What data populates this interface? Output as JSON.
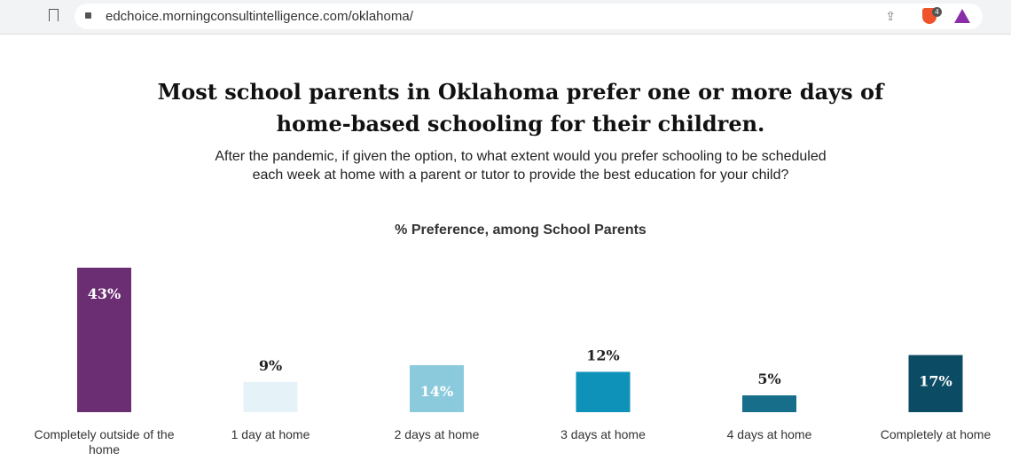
{
  "browser": {
    "url": "edchoice.morningconsultintelligence.com/oklahoma/",
    "extension_badge": "4",
    "icons": [
      "bookmark-icon",
      "lock-icon",
      "share-icon",
      "brave-shield-icon",
      "aurora-triangle-icon"
    ]
  },
  "header": {
    "title_line1": "Most school parents in Oklahoma prefer one or more days of",
    "title_line2": "home-based schooling for their children.",
    "subtitle_line1": "After the pandemic, if given the option, to what extent would you prefer schooling to be scheduled",
    "subtitle_line2": "each week at home with a parent or tutor to provide the best education for your child?"
  },
  "chart_data": {
    "type": "bar",
    "title": "% Preference, among School Parents",
    "categories": [
      "Completely outside of the home",
      "1 day at home",
      "2 days at home",
      "3 days at home",
      "4 days at home",
      "Completely at home"
    ],
    "values": [
      43,
      9,
      14,
      12,
      5,
      17
    ],
    "labels": [
      "43%",
      "9%",
      "14%",
      "12%",
      "5%",
      "17%"
    ],
    "colors": [
      "#6b2e72",
      "#e5f3f9",
      "#8bcadd",
      "#0f92b9",
      "#166e8b",
      "#0b4b64"
    ],
    "label_inside": [
      true,
      false,
      true,
      false,
      false,
      true
    ],
    "ylim": [
      0,
      43
    ],
    "grid": false
  }
}
